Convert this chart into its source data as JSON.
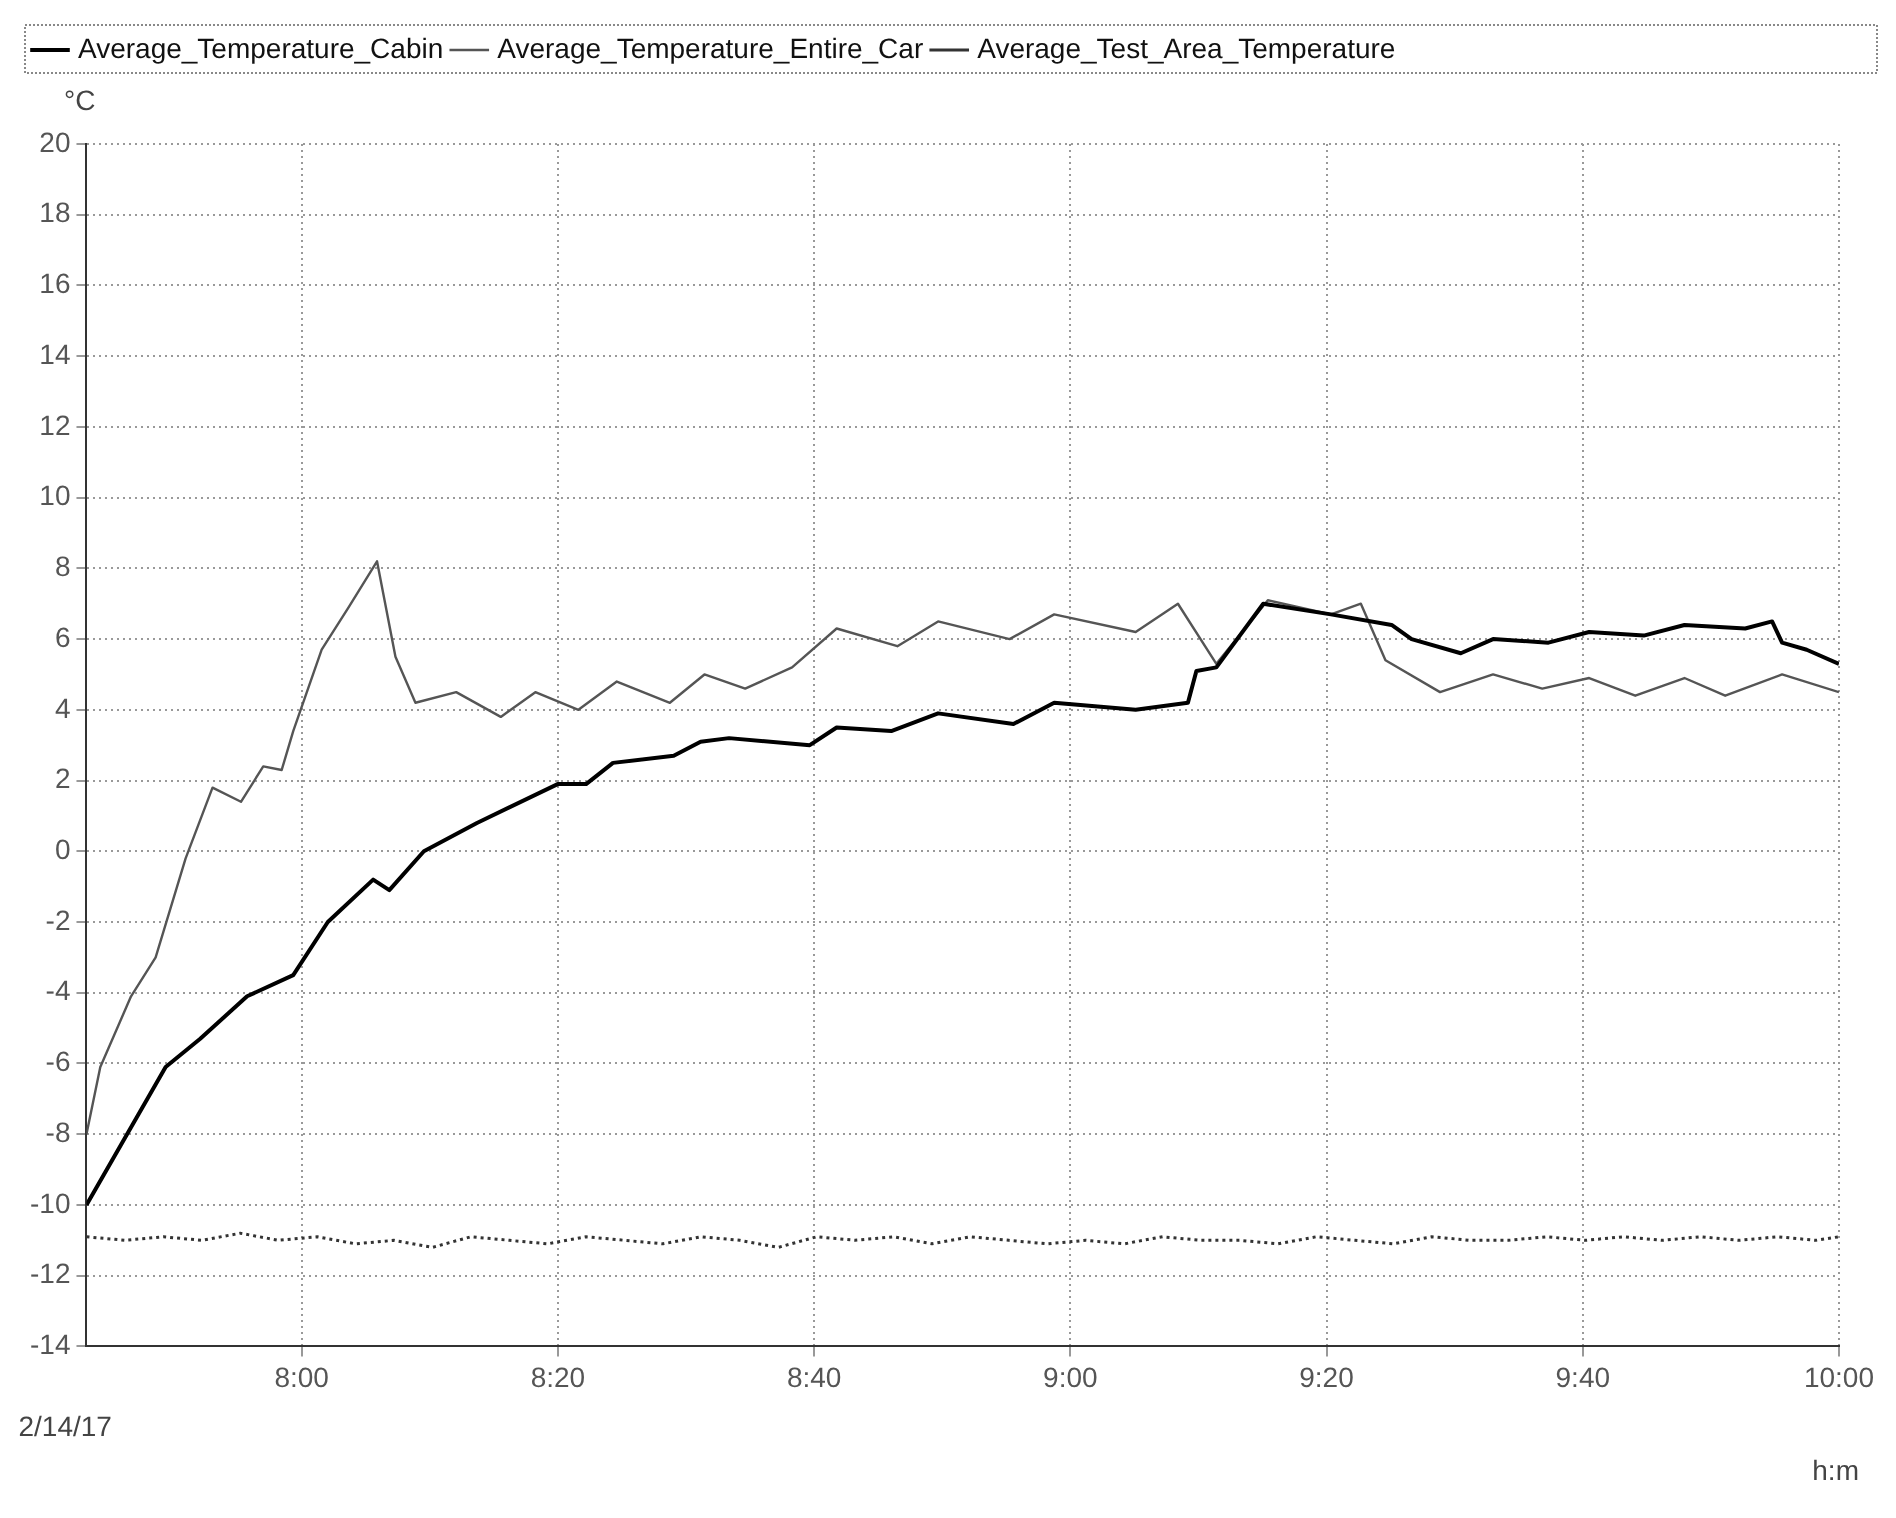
{
  "chart_data": {
    "type": "line",
    "ylabel": "°C",
    "xlabel": "h:m",
    "annotations": [
      "2/14/17"
    ],
    "xlim": [
      7.72,
      10
    ],
    "ylim": [
      -14,
      20
    ],
    "xticks": [
      {
        "value": 8,
        "label": "8:00"
      },
      {
        "value": 8.3333,
        "label": "8:20"
      },
      {
        "value": 8.6667,
        "label": "8:40"
      },
      {
        "value": 9,
        "label": "9:00"
      },
      {
        "value": 9.3333,
        "label": "9:20"
      },
      {
        "value": 9.6667,
        "label": "9:40"
      },
      {
        "value": 10,
        "label": "10:00"
      }
    ],
    "yticks": [
      -14,
      -12,
      -10,
      -8,
      -6,
      -4,
      -2,
      0,
      2,
      4,
      6,
      8,
      10,
      12,
      14,
      16,
      18,
      20
    ],
    "grid": true,
    "legend": "top left",
    "series": [
      {
        "name": "Average_Temperature_Cabin",
        "color": "#000000",
        "line_style": "solid",
        "x": [
          7.72,
          7.823,
          7.868,
          7.929,
          7.989,
          8.034,
          8.093,
          8.114,
          8.159,
          8.228,
          8.333,
          8.37,
          8.405,
          8.484,
          8.519,
          8.556,
          8.661,
          8.696,
          8.767,
          8.828,
          8.926,
          8.979,
          9.085,
          9.153,
          9.164,
          9.19,
          9.251,
          9.339,
          9.418,
          9.444,
          9.508,
          9.55,
          9.622,
          9.675,
          9.746,
          9.799,
          9.878,
          9.913,
          9.926,
          9.958,
          10
        ],
        "values": [
          -10,
          -6.1,
          -5.3,
          -4.1,
          -3.5,
          -2.0,
          -0.8,
          -1.1,
          0.0,
          0.8,
          1.9,
          1.9,
          2.5,
          2.7,
          3.1,
          3.2,
          3.0,
          3.5,
          3.4,
          3.9,
          3.6,
          4.2,
          4.0,
          4.2,
          5.1,
          5.2,
          7.0,
          6.7,
          6.4,
          6.0,
          5.6,
          6.0,
          5.9,
          6.2,
          6.1,
          6.4,
          6.3,
          6.5,
          5.9,
          5.7,
          5.3
        ]
      },
      {
        "name": "Average_Temperature_Entire_Car",
        "color": "#555555",
        "line_style": "solid",
        "x": [
          7.72,
          7.738,
          7.778,
          7.81,
          7.849,
          7.884,
          7.921,
          7.95,
          7.974,
          7.989,
          8.026,
          8.061,
          8.098,
          8.122,
          8.148,
          8.201,
          8.259,
          8.304,
          8.36,
          8.41,
          8.479,
          8.524,
          8.577,
          8.638,
          8.696,
          8.775,
          8.828,
          8.921,
          8.979,
          9.085,
          9.14,
          9.19,
          9.257,
          9.339,
          9.378,
          9.41,
          9.481,
          9.55,
          9.614,
          9.675,
          9.735,
          9.799,
          9.852,
          9.926,
          10
        ],
        "values": [
          -8,
          -6.1,
          -4.1,
          -3.0,
          -0.2,
          1.8,
          1.4,
          2.4,
          2.3,
          3.4,
          5.7,
          6.9,
          8.2,
          5.5,
          4.2,
          4.5,
          3.8,
          4.5,
          4.0,
          4.8,
          4.2,
          5.0,
          4.6,
          5.2,
          6.3,
          5.8,
          6.5,
          6.0,
          6.7,
          6.2,
          7.0,
          5.3,
          7.1,
          6.7,
          7.0,
          5.4,
          4.5,
          5.0,
          4.6,
          4.9,
          4.4,
          4.9,
          4.4,
          5.0,
          4.5
        ]
      },
      {
        "name": "Average_Test_Area_Temperature",
        "color": "#333333",
        "line_style": "dotted",
        "x": [
          7.72,
          7.77,
          7.82,
          7.87,
          7.92,
          7.97,
          8.02,
          8.07,
          8.12,
          8.17,
          8.22,
          8.27,
          8.32,
          8.37,
          8.42,
          8.47,
          8.52,
          8.57,
          8.62,
          8.67,
          8.72,
          8.77,
          8.82,
          8.87,
          8.92,
          8.97,
          9.02,
          9.07,
          9.12,
          9.17,
          9.22,
          9.27,
          9.32,
          9.37,
          9.42,
          9.47,
          9.52,
          9.57,
          9.62,
          9.67,
          9.72,
          9.77,
          9.82,
          9.87,
          9.92,
          9.97,
          10
        ],
        "values": [
          -10.9,
          -11.0,
          -10.9,
          -11.0,
          -10.8,
          -11.0,
          -10.9,
          -11.1,
          -11.0,
          -11.2,
          -10.9,
          -11.0,
          -11.1,
          -10.9,
          -11.0,
          -11.1,
          -10.9,
          -11.0,
          -11.2,
          -10.9,
          -11.0,
          -10.9,
          -11.1,
          -10.9,
          -11.0,
          -11.1,
          -11.0,
          -11.1,
          -10.9,
          -11.0,
          -11.0,
          -11.1,
          -10.9,
          -11.0,
          -11.1,
          -10.9,
          -11.0,
          -11.0,
          -10.9,
          -11.0,
          -10.9,
          -11.0,
          -10.9,
          -11.0,
          -10.9,
          -11.0,
          -10.9
        ]
      }
    ]
  }
}
